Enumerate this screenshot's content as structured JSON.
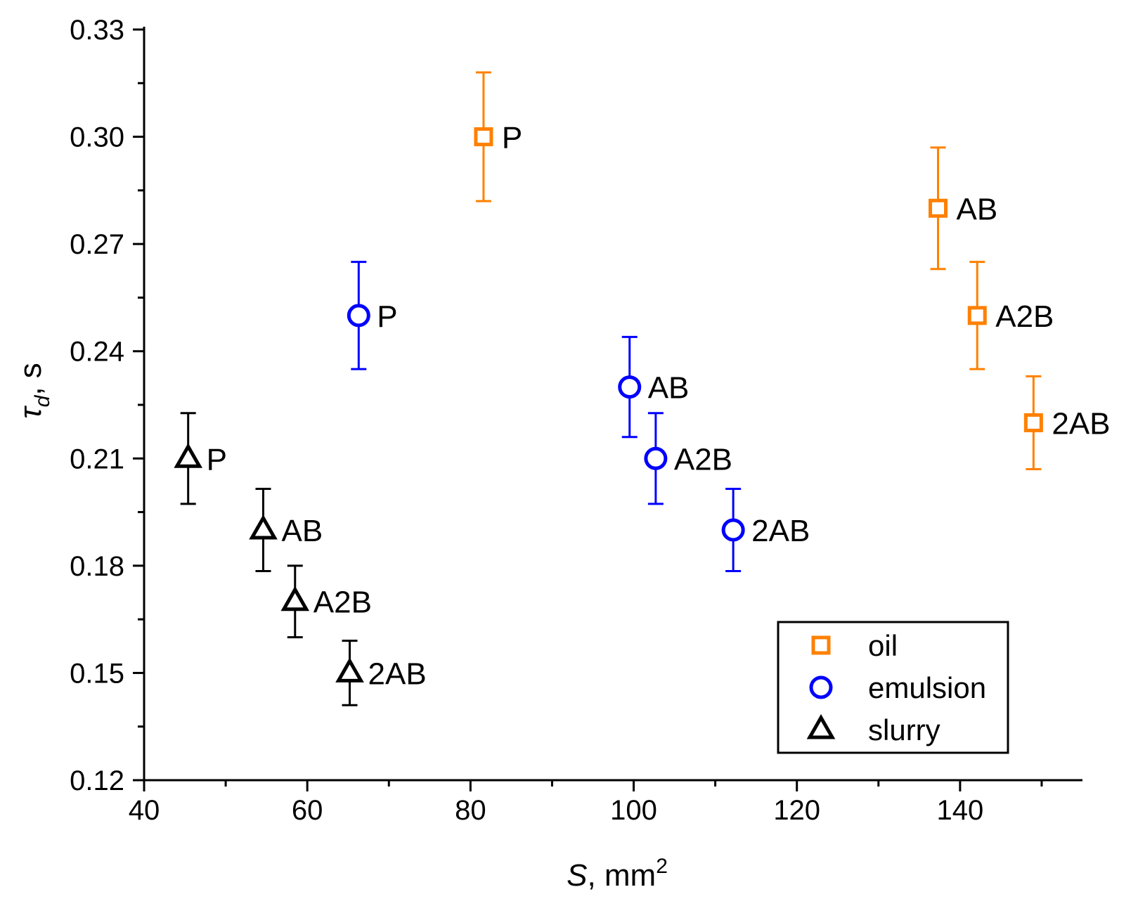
{
  "chart_data": {
    "type": "scatter",
    "title": "",
    "xlabel": {
      "var": "S",
      "text": ", mm",
      "sup": "2"
    },
    "ylabel": {
      "var": "τ",
      "sub": "d",
      "text": ", s"
    },
    "xlim": [
      40,
      155
    ],
    "ylim": [
      0.12,
      0.33
    ],
    "xticks": [
      40,
      60,
      80,
      100,
      120,
      140
    ],
    "xtick_labels": [
      "40",
      "60",
      "80",
      "100",
      "120",
      "140"
    ],
    "yticks": [
      0.12,
      0.15,
      0.18,
      0.21,
      0.24,
      0.27,
      0.3,
      0.33
    ],
    "ytick_labels": [
      "0.12",
      "0.15",
      "0.18",
      "0.21",
      "0.24",
      "0.27",
      "0.30",
      "0.33"
    ],
    "x_minor_step": 10,
    "y_minor_step": 0.015,
    "grid": false,
    "legend_position": "bottom-right",
    "series": [
      {
        "name": "oil",
        "marker": "square",
        "color": "#ff8000",
        "points": [
          {
            "label": "P",
            "x": 81.6,
            "y": 0.3,
            "err": 0.018
          },
          {
            "label": "AB",
            "x": 137.3,
            "y": 0.28,
            "err": 0.017
          },
          {
            "label": "A2B",
            "x": 142.1,
            "y": 0.25,
            "err": 0.015
          },
          {
            "label": "2AB",
            "x": 149.0,
            "y": 0.22,
            "err": 0.013
          }
        ]
      },
      {
        "name": "emulsion",
        "marker": "circle",
        "color": "#0000ff",
        "points": [
          {
            "label": "P",
            "x": 66.3,
            "y": 0.25,
            "err": 0.015
          },
          {
            "label": "AB",
            "x": 99.5,
            "y": 0.23,
            "err": 0.014
          },
          {
            "label": "A2B",
            "x": 102.7,
            "y": 0.21,
            "err": 0.0127
          },
          {
            "label": "2AB",
            "x": 112.2,
            "y": 0.19,
            "err": 0.0115
          }
        ]
      },
      {
        "name": "slurry",
        "marker": "triangle",
        "color": "#000000",
        "points": [
          {
            "label": "P",
            "x": 45.4,
            "y": 0.21,
            "err": 0.0127
          },
          {
            "label": "AB",
            "x": 54.6,
            "y": 0.19,
            "err": 0.0115
          },
          {
            "label": "A2B",
            "x": 58.5,
            "y": 0.17,
            "err": 0.01
          },
          {
            "label": "2AB",
            "x": 65.2,
            "y": 0.15,
            "err": 0.009
          }
        ]
      }
    ]
  }
}
